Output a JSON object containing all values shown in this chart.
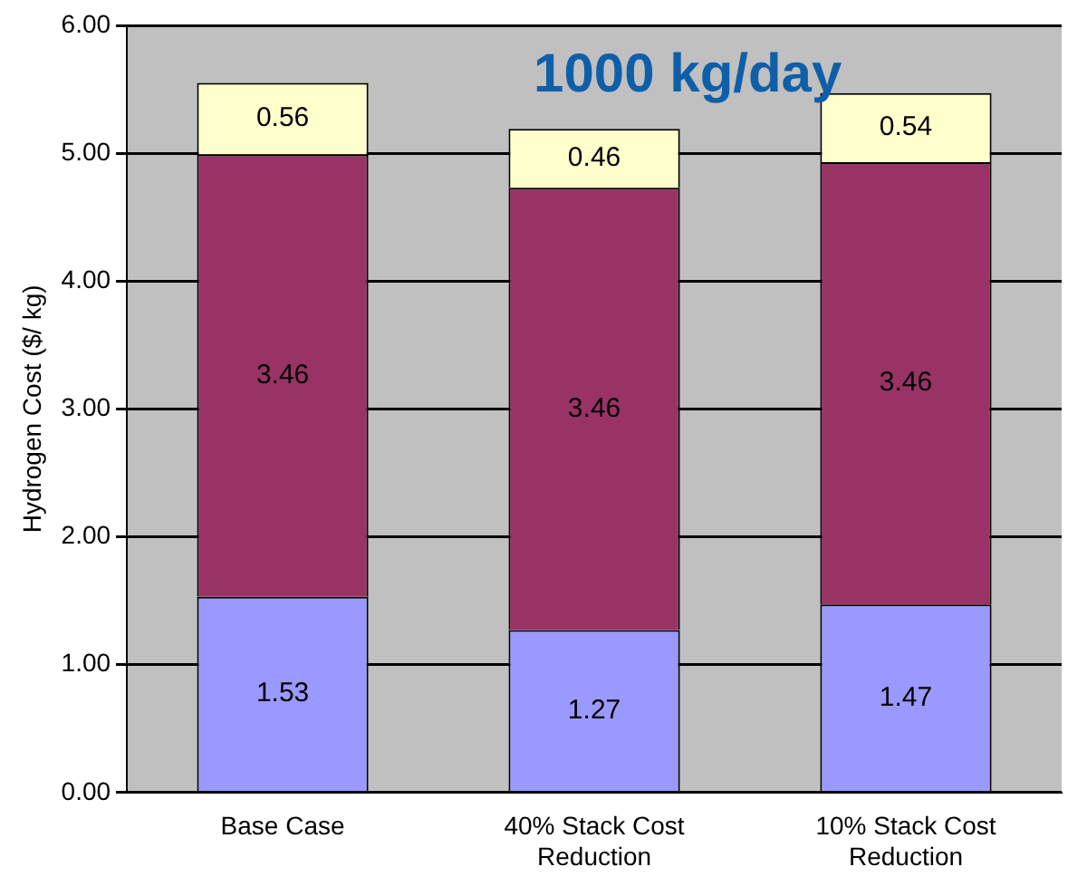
{
  "chart_data": {
    "type": "bar",
    "title": "1000 kg/day",
    "ylabel": "Hydrogen Cost ($/ kg)",
    "categories": [
      "Base Case",
      "40% Stack Cost Reduction",
      "10% Stack Cost Reduction"
    ],
    "stacked": true,
    "data_labels": true,
    "grid": "y",
    "legend": false,
    "ylim": [
      0,
      6
    ],
    "yticks": [
      {
        "value": 0,
        "label": "0.00"
      },
      {
        "value": 1,
        "label": "1.00"
      },
      {
        "value": 2,
        "label": "2.00"
      },
      {
        "value": 3,
        "label": "3.00"
      },
      {
        "value": 4,
        "label": "4.00"
      },
      {
        "value": 5,
        "label": "5.00"
      },
      {
        "value": 6,
        "label": "6.00"
      }
    ],
    "series": [
      {
        "color": "#9999ff",
        "values": [
          1.53,
          1.27,
          1.47
        ]
      },
      {
        "color": "#993366",
        "values": [
          3.46,
          3.46,
          3.46
        ]
      },
      {
        "color": "#ffffcc",
        "values": [
          0.56,
          0.46,
          0.54
        ]
      }
    ]
  }
}
